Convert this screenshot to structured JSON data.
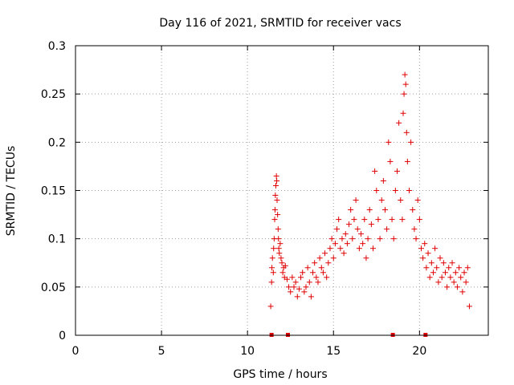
{
  "chart_data": {
    "type": "scatter",
    "title": "Day 116 of 2021, SRMTID for receiver vacs",
    "xlabel": "GPS time / hours",
    "ylabel": "SRMTID / TECUs",
    "xlim": [
      0,
      24
    ],
    "ylim": [
      0,
      0.3
    ],
    "xticks": [
      0,
      5,
      10,
      15,
      20
    ],
    "xtick_labels": [
      "0",
      "5",
      "10",
      "15",
      "20"
    ],
    "yticks": [
      0,
      0.05,
      0.1,
      0.15,
      0.2,
      0.25,
      0.3
    ],
    "ytick_labels": [
      "0",
      "0.05",
      "0.1",
      "0.15",
      "0.2",
      "0.25",
      "0.3"
    ],
    "grid": true,
    "marker": "plus",
    "color": "#e00000",
    "series": [
      {
        "name": "SRMTID",
        "points": [
          [
            11.35,
            0.03
          ],
          [
            11.4,
            0.055
          ],
          [
            11.42,
            0.07
          ],
          [
            11.45,
            0.08
          ],
          [
            11.5,
            0.065
          ],
          [
            11.52,
            0.09
          ],
          [
            11.55,
            0.1
          ],
          [
            11.58,
            0.12
          ],
          [
            11.6,
            0.13
          ],
          [
            11.62,
            0.145
          ],
          [
            11.65,
            0.155
          ],
          [
            11.68,
            0.165
          ],
          [
            11.7,
            0.16
          ],
          [
            11.72,
            0.14
          ],
          [
            11.75,
            0.125
          ],
          [
            11.78,
            0.11
          ],
          [
            11.8,
            0.1
          ],
          [
            11.82,
            0.09
          ],
          [
            11.85,
            0.085
          ],
          [
            11.9,
            0.095
          ],
          [
            11.95,
            0.08
          ],
          [
            12.0,
            0.075
          ],
          [
            12.05,
            0.065
          ],
          [
            12.1,
            0.07
          ],
          [
            12.15,
            0.06
          ],
          [
            12.2,
            0.072
          ],
          [
            12.3,
            0.058
          ],
          [
            12.4,
            0.05
          ],
          [
            12.5,
            0.045
          ],
          [
            12.6,
            0.06
          ],
          [
            12.7,
            0.05
          ],
          [
            12.8,
            0.055
          ],
          [
            12.9,
            0.04
          ],
          [
            13.0,
            0.048
          ],
          [
            13.1,
            0.06
          ],
          [
            13.2,
            0.065
          ],
          [
            13.3,
            0.045
          ],
          [
            13.4,
            0.05
          ],
          [
            13.5,
            0.07
          ],
          [
            13.6,
            0.055
          ],
          [
            13.7,
            0.04
          ],
          [
            13.8,
            0.065
          ],
          [
            13.9,
            0.075
          ],
          [
            14.0,
            0.06
          ],
          [
            14.1,
            0.055
          ],
          [
            14.2,
            0.08
          ],
          [
            14.3,
            0.07
          ],
          [
            14.4,
            0.065
          ],
          [
            14.5,
            0.085
          ],
          [
            14.6,
            0.06
          ],
          [
            14.7,
            0.075
          ],
          [
            14.8,
            0.09
          ],
          [
            14.9,
            0.1
          ],
          [
            15.0,
            0.08
          ],
          [
            15.1,
            0.095
          ],
          [
            15.2,
            0.11
          ],
          [
            15.3,
            0.12
          ],
          [
            15.4,
            0.09
          ],
          [
            15.5,
            0.1
          ],
          [
            15.6,
            0.085
          ],
          [
            15.7,
            0.105
          ],
          [
            15.8,
            0.095
          ],
          [
            15.9,
            0.115
          ],
          [
            16.0,
            0.13
          ],
          [
            16.1,
            0.1
          ],
          [
            16.2,
            0.12
          ],
          [
            16.3,
            0.14
          ],
          [
            16.4,
            0.11
          ],
          [
            16.5,
            0.09
          ],
          [
            16.6,
            0.105
          ],
          [
            16.7,
            0.095
          ],
          [
            16.8,
            0.12
          ],
          [
            16.9,
            0.08
          ],
          [
            17.0,
            0.1
          ],
          [
            17.1,
            0.13
          ],
          [
            17.2,
            0.115
          ],
          [
            17.3,
            0.09
          ],
          [
            17.4,
            0.17
          ],
          [
            17.5,
            0.15
          ],
          [
            17.6,
            0.12
          ],
          [
            17.7,
            0.1
          ],
          [
            17.8,
            0.14
          ],
          [
            17.9,
            0.16
          ],
          [
            18.0,
            0.13
          ],
          [
            18.1,
            0.11
          ],
          [
            18.2,
            0.2
          ],
          [
            18.3,
            0.18
          ],
          [
            18.4,
            0.12
          ],
          [
            18.5,
            0.1
          ],
          [
            18.6,
            0.15
          ],
          [
            18.7,
            0.17
          ],
          [
            18.8,
            0.22
          ],
          [
            18.9,
            0.14
          ],
          [
            19.0,
            0.12
          ],
          [
            19.05,
            0.23
          ],
          [
            19.1,
            0.25
          ],
          [
            19.15,
            0.27
          ],
          [
            19.2,
            0.26
          ],
          [
            19.25,
            0.21
          ],
          [
            19.3,
            0.18
          ],
          [
            19.4,
            0.15
          ],
          [
            19.5,
            0.2
          ],
          [
            19.6,
            0.13
          ],
          [
            19.7,
            0.11
          ],
          [
            19.8,
            0.1
          ],
          [
            19.9,
            0.14
          ],
          [
            20.0,
            0.12
          ],
          [
            20.1,
            0.09
          ],
          [
            20.2,
            0.08
          ],
          [
            20.3,
            0.095
          ],
          [
            20.4,
            0.07
          ],
          [
            20.5,
            0.085
          ],
          [
            20.6,
            0.06
          ],
          [
            20.7,
            0.075
          ],
          [
            20.8,
            0.065
          ],
          [
            20.9,
            0.09
          ],
          [
            21.0,
            0.07
          ],
          [
            21.1,
            0.055
          ],
          [
            21.2,
            0.08
          ],
          [
            21.3,
            0.06
          ],
          [
            21.4,
            0.075
          ],
          [
            21.5,
            0.065
          ],
          [
            21.6,
            0.05
          ],
          [
            21.7,
            0.07
          ],
          [
            21.8,
            0.06
          ],
          [
            21.9,
            0.075
          ],
          [
            22.0,
            0.055
          ],
          [
            22.1,
            0.065
          ],
          [
            22.2,
            0.05
          ],
          [
            22.3,
            0.07
          ],
          [
            22.4,
            0.06
          ],
          [
            22.5,
            0.045
          ],
          [
            22.6,
            0.065
          ],
          [
            22.7,
            0.055
          ],
          [
            22.8,
            0.07
          ],
          [
            22.9,
            0.03
          ]
        ]
      }
    ],
    "axis_markers": [
      11.4,
      12.35,
      18.45,
      20.35
    ]
  }
}
